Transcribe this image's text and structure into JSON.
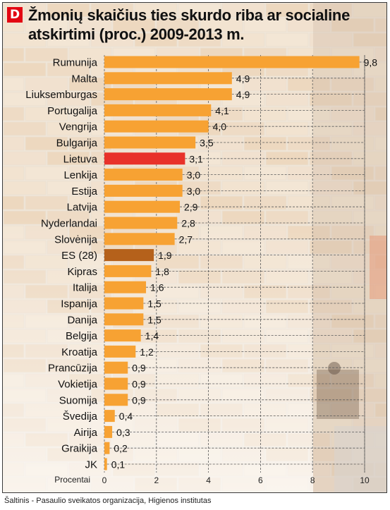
{
  "title": "Žmonių skaičius ties skurdo riba ar socialine atskirtimi (proc.) 2009-2013 m.",
  "logo_letter": "D",
  "source": "Šaltinis - Pasaulio sveikatos organizacija, Higienos institutas",
  "colors": {
    "bar": "#f7a233",
    "highlight_lietuva": "#e8312a",
    "highlight_es": "#b5611b",
    "grid": "#5a5a5a",
    "accent": "#e30613"
  },
  "chart_data": {
    "type": "bar",
    "orientation": "horizontal",
    "title": "Žmonių skaičius ties skurdo riba ar socialine atskirtimi (proc.) 2009-2013 m.",
    "xlabel": "Procentai",
    "ylabel": "",
    "xlim": [
      0,
      10
    ],
    "xticks": [
      "0",
      "2",
      "4",
      "6",
      "8",
      "10"
    ],
    "grid": true,
    "categories": [
      "Rumunija",
      "Malta",
      "Liuksemburgas",
      "Portugalija",
      "Vengrija",
      "Bulgarija",
      "Lietuva",
      "Lenkija",
      "Estija",
      "Latvija",
      "Nyderlandai",
      "Slovėnija",
      "ES (28)",
      "Kipras",
      "Italija",
      "Ispanija",
      "Danija",
      "Belgija",
      "Kroatija",
      "Prancūzija",
      "Vokietija",
      "Suomija",
      "Švedija",
      "Airija",
      "Graikija",
      "JK"
    ],
    "values": [
      9.8,
      4.9,
      4.9,
      4.1,
      4.0,
      3.5,
      3.1,
      3.0,
      3.0,
      2.9,
      2.8,
      2.7,
      1.9,
      1.8,
      1.6,
      1.5,
      1.5,
      1.4,
      1.2,
      0.9,
      0.9,
      0.9,
      0.4,
      0.3,
      0.2,
      0.1
    ],
    "value_labels": [
      "9,8",
      "4,9",
      "4,9",
      "4,1",
      "4,0",
      "3,5",
      "3,1",
      "3,0",
      "3,0",
      "2,9",
      "2,8",
      "2,7",
      "1,9",
      "1,8",
      "1,6",
      "1,5",
      "1,5",
      "1,4",
      "1,2",
      "0,9",
      "0,9",
      "0,9",
      "0,4",
      "0,3",
      "0,2",
      "0,1"
    ],
    "highlighted": {
      "Lietuva": "highlight_lietuva",
      "ES (28)": "highlight_es"
    }
  }
}
